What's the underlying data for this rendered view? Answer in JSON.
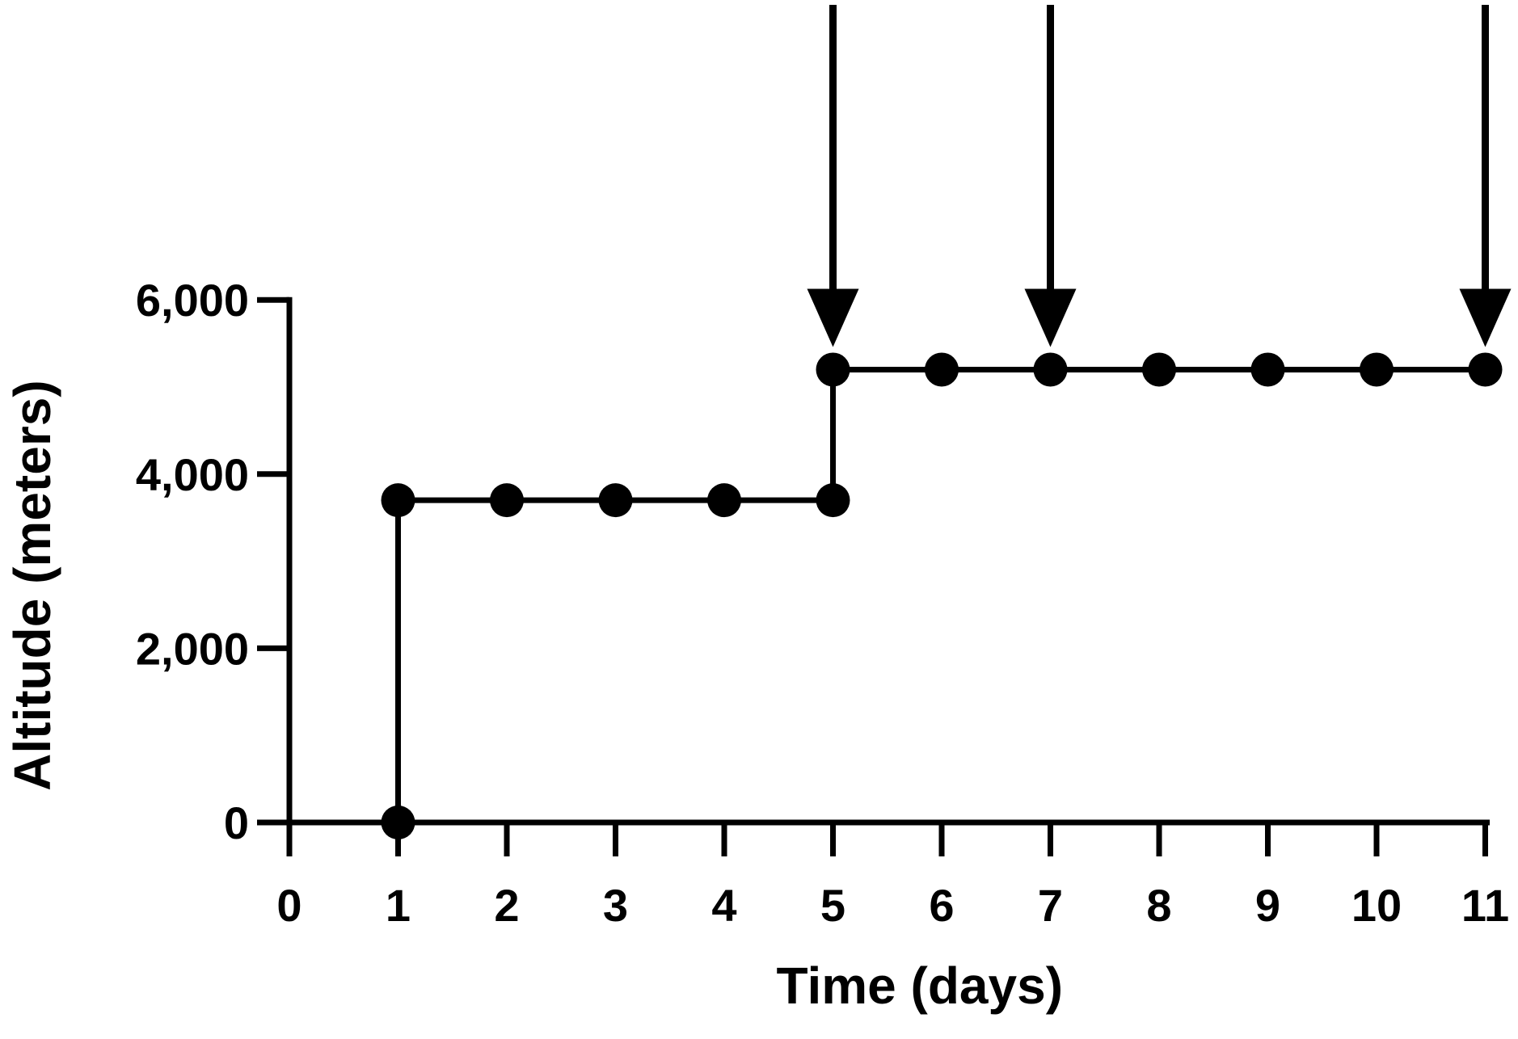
{
  "chart_data": {
    "type": "line",
    "title": "",
    "xlabel": "Time (days)",
    "ylabel": "Altitude (meters)",
    "xlim": [
      0,
      11
    ],
    "ylim": [
      0,
      6000
    ],
    "x_ticks": [
      "0",
      "1",
      "2",
      "3",
      "4",
      "5",
      "6",
      "7",
      "8",
      "9",
      "10",
      "11"
    ],
    "y_ticks": [
      "0",
      "2,000",
      "4,000",
      "6,000"
    ],
    "grid": false,
    "legend": "none",
    "step": true,
    "series": [
      {
        "x": [
          1,
          1,
          2,
          3,
          4,
          5,
          5,
          6,
          7,
          8,
          9,
          10,
          11
        ],
        "y": [
          0,
          3700,
          3700,
          3700,
          3700,
          3700,
          5200,
          5200,
          5200,
          5200,
          5200,
          5200,
          5200
        ],
        "color": "#000000",
        "marker": "circle"
      }
    ],
    "annotations": [
      {
        "type": "arrow",
        "x": 5,
        "direction": "down"
      },
      {
        "type": "arrow",
        "x": 7,
        "direction": "down"
      },
      {
        "type": "arrow",
        "x": 11,
        "direction": "down"
      }
    ]
  }
}
